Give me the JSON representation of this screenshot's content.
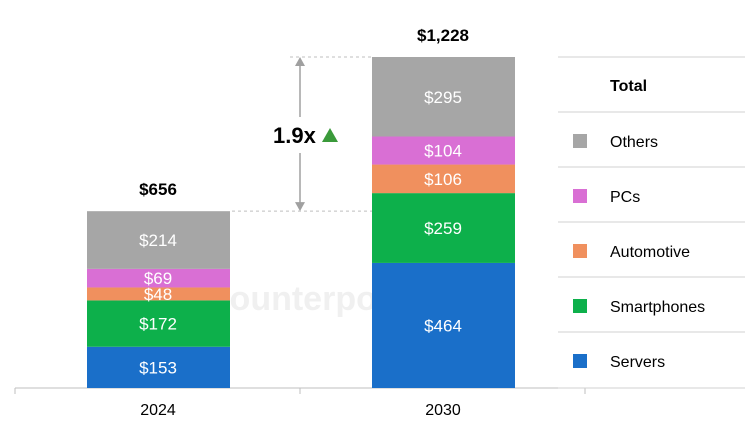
{
  "chart_data": {
    "type": "bar",
    "stacked": true,
    "categories": [
      "2024",
      "2030"
    ],
    "series": [
      {
        "name": "Servers",
        "values": [
          153,
          464
        ],
        "color": "#1a6fc9",
        "value_labels": [
          "$153",
          "$464"
        ]
      },
      {
        "name": "Smartphones",
        "values": [
          172,
          259
        ],
        "color": "#0db04b",
        "value_labels": [
          "$172",
          "$259"
        ]
      },
      {
        "name": "Automotive",
        "values": [
          48,
          106
        ],
        "color": "#f0905e",
        "value_labels": [
          "$48",
          "$106"
        ]
      },
      {
        "name": "PCs",
        "values": [
          69,
          104
        ],
        "color": "#d96fd4",
        "value_labels": [
          "$69",
          "$104"
        ]
      },
      {
        "name": "Others",
        "values": [
          214,
          295
        ],
        "color": "#a6a6a6",
        "value_labels": [
          "$214",
          "$295"
        ]
      }
    ],
    "totals": [
      656,
      1228
    ],
    "total_labels": [
      "$656",
      "$1,228"
    ],
    "annotation": {
      "text": "1.9x",
      "icon": "up-triangle-icon",
      "color": "#3a9a3a"
    },
    "legend": {
      "title": "Total",
      "placement": "right",
      "order": [
        "Others",
        "PCs",
        "Automotive",
        "Smartphones",
        "Servers"
      ]
    },
    "xlabel": "",
    "ylabel": "",
    "grid": false
  },
  "watermark": {
    "text": "Counterpoint"
  }
}
